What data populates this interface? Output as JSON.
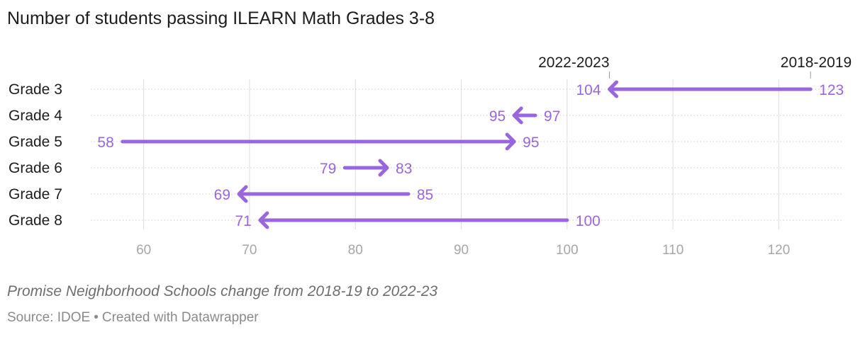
{
  "title": "Number of students passing ILEARN Math Grades 3-8",
  "footer": {
    "note": "Promise Neighborhood Schools change from 2018-19 to 2022-23",
    "source": "Source: IDOE",
    "separator": "•",
    "credit": "Created with Datawrapper"
  },
  "chart_data": {
    "type": "arrow",
    "title": "Number of students passing ILEARN Math Grades 3-8",
    "categories": [
      "Grade 3",
      "Grade 4",
      "Grade 5",
      "Grade 6",
      "Grade 7",
      "Grade 8"
    ],
    "series": [
      {
        "name": "2018-2019",
        "values": [
          123,
          97,
          58,
          79,
          85,
          100
        ]
      },
      {
        "name": "2022-2023",
        "values": [
          104,
          95,
          95,
          83,
          69,
          71
        ]
      }
    ],
    "x_ticks": [
      60,
      70,
      80,
      90,
      100,
      110,
      120
    ],
    "xlim": [
      55,
      126
    ],
    "legend_labels": {
      "start": "2018-2019",
      "end": "2022-2023"
    },
    "colors": {
      "arrow": "#9966dd",
      "grid": "#dddddd",
      "row_line": "#cccccc",
      "tick_text": "#a6a6a6"
    }
  }
}
